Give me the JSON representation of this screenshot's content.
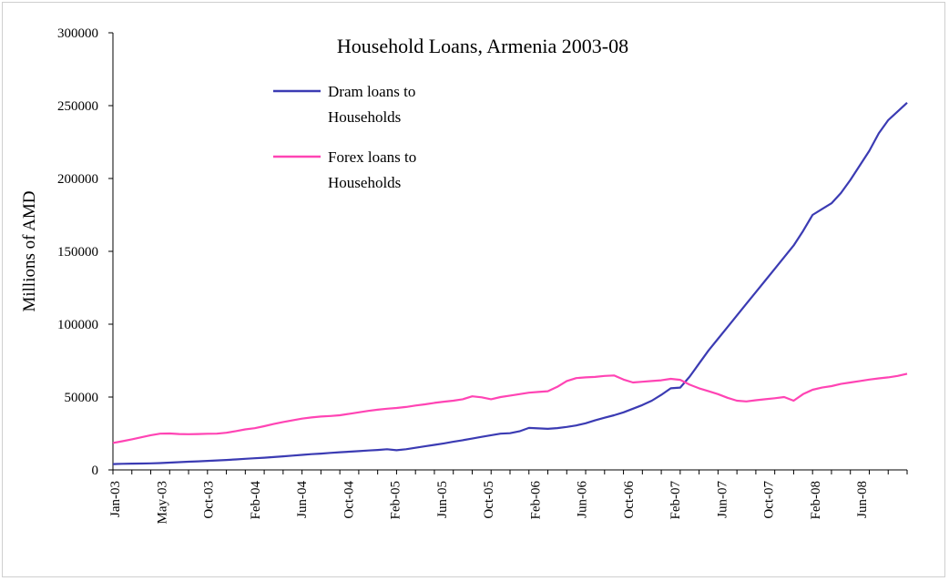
{
  "chart_data": {
    "type": "line",
    "title": "Household Loans, Armenia 2003-08",
    "xlabel": "",
    "ylabel": "Millions of AMD",
    "ylim": [
      0,
      300000
    ],
    "yticks": [
      0,
      50000,
      100000,
      150000,
      200000,
      250000,
      300000
    ],
    "ytick_labels": [
      "0",
      "50000",
      "100000",
      "150000",
      "200000",
      "250000",
      "300000"
    ],
    "xticks": [
      "Jan-03",
      "May-03",
      "Oct-03",
      "Feb-04",
      "Jun-04",
      "Oct-04",
      "Feb-05",
      "Jun-05",
      "Oct-05",
      "Feb-06",
      "Jun-06",
      "Oct-06",
      "Feb-07",
      "Jun-07",
      "Oct-07",
      "Feb-08",
      "Jun-08"
    ],
    "grid": false,
    "legend_position": "top-center",
    "start_month": "Jan-03",
    "series": [
      {
        "name": "Dram loans to Households",
        "legend_lines": [
          "Dram loans to",
          "Households"
        ],
        "color": "#3b3bb3",
        "values": [
          4000,
          4200,
          4300,
          4400,
          4500,
          4700,
          5000,
          5300,
          5600,
          5900,
          6200,
          6500,
          6800,
          7200,
          7600,
          8000,
          8400,
          8800,
          9300,
          9800,
          10300,
          10800,
          11200,
          11700,
          12100,
          12500,
          12900,
          13300,
          13700,
          14200,
          13500,
          14200,
          15200,
          16200,
          17200,
          18200,
          19300,
          20400,
          21500,
          22700,
          23800,
          24900,
          25200,
          26500,
          28800,
          28500,
          28200,
          28700,
          29500,
          30500,
          32000,
          34000,
          35800,
          37500,
          39500,
          42000,
          44500,
          47500,
          51500,
          56000,
          56500,
          64000,
          73000,
          82000,
          90000,
          98000,
          106000,
          114000,
          122000,
          130000,
          138000,
          146000,
          154000,
          164000,
          175000,
          179000,
          183000,
          190000,
          199000,
          209000,
          219000,
          231000,
          240000,
          246000,
          252000
        ]
      },
      {
        "name": "Forex loans to Households",
        "legend_lines": [
          "Forex loans to",
          "Households"
        ],
        "color": "#ff44b4",
        "values": [
          18500,
          19700,
          21000,
          22400,
          23800,
          24900,
          25000,
          24600,
          24500,
          24600,
          24800,
          24900,
          25500,
          26600,
          27800,
          28600,
          30000,
          31500,
          32900,
          34000,
          35200,
          36000,
          36600,
          37000,
          37500,
          38500,
          39500,
          40500,
          41300,
          42000,
          42500,
          43200,
          44200,
          45000,
          46000,
          46800,
          47500,
          48500,
          50500,
          49800,
          48500,
          50000,
          51000,
          52000,
          53000,
          53500,
          54000,
          57000,
          61000,
          63000,
          63500,
          63800,
          64500,
          64800,
          62000,
          60000,
          60500,
          61000,
          61500,
          62500,
          61800,
          58500,
          56000,
          54000,
          52000,
          49500,
          47500,
          47000,
          47800,
          48500,
          49200,
          50000,
          47500,
          52000,
          55000,
          56500,
          57500,
          59000,
          60000,
          61000,
          62000,
          62800,
          63500,
          64500,
          66000
        ]
      }
    ]
  }
}
